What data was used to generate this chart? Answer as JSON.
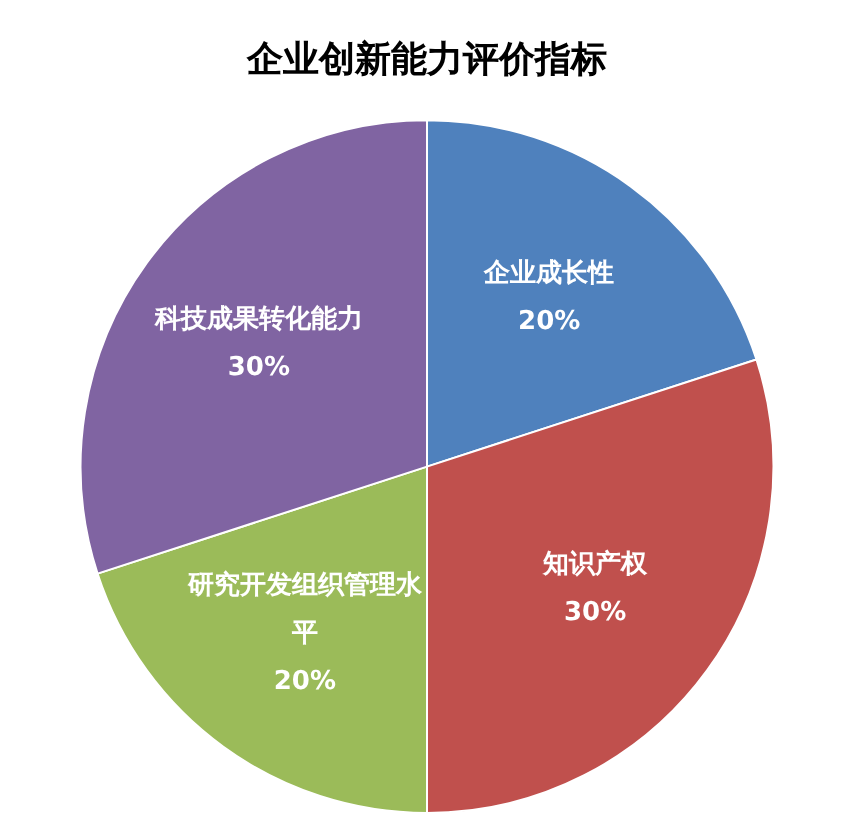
{
  "chart_data": {
    "type": "pie",
    "title": "企业创新能力评价指标",
    "categories": [
      "企业成长性",
      "知识产权",
      "研究开发组织管理水平",
      "科技成果转化能力"
    ],
    "values": [
      20,
      30,
      20,
      30
    ],
    "value_labels": [
      "20%",
      "30%",
      "20%",
      "30%"
    ],
    "colors": [
      "#4f81bd",
      "#c0504d",
      "#9bbb59",
      "#8064a2"
    ],
    "legend": false
  }
}
